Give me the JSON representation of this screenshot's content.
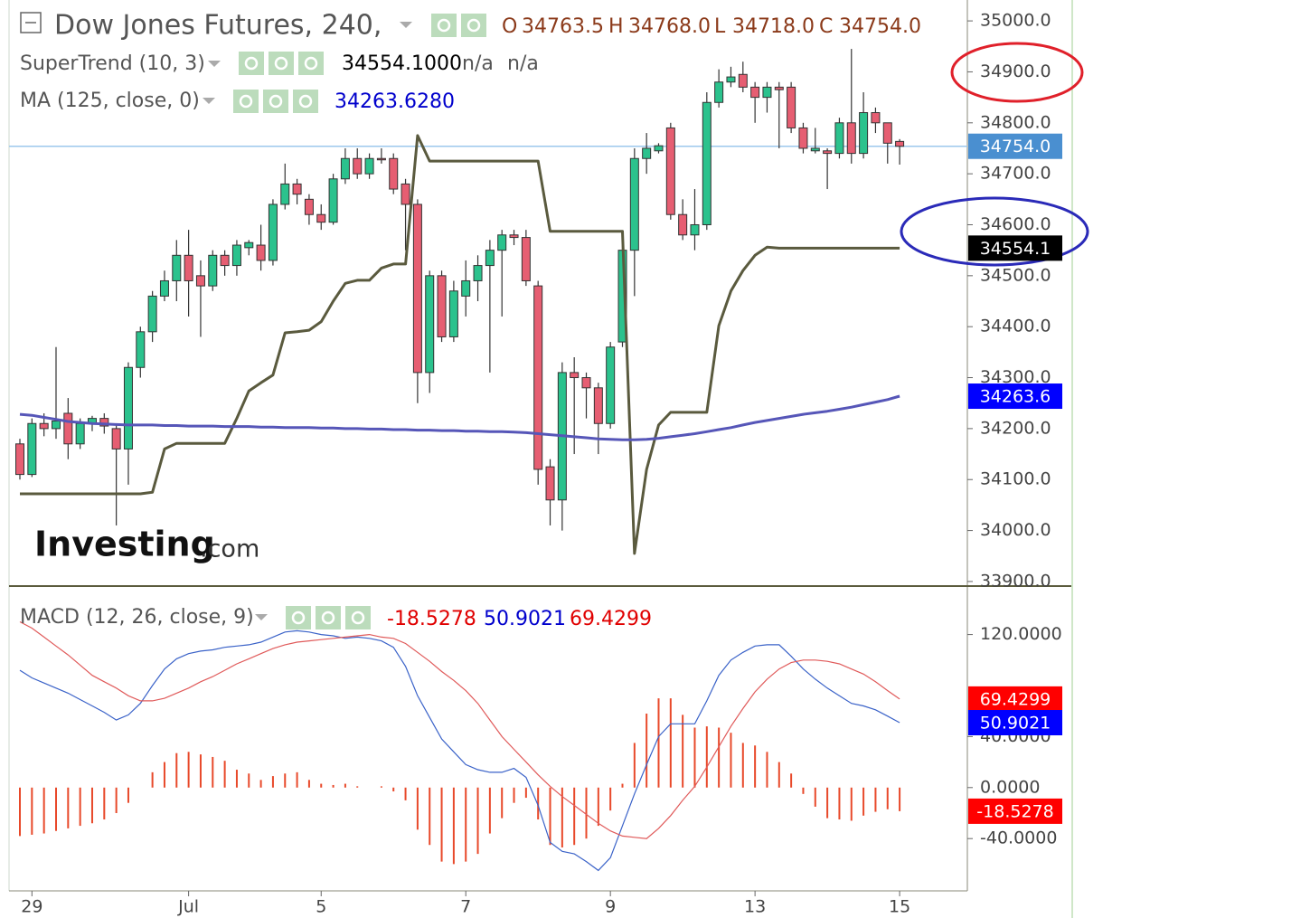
{
  "chart_data": [
    {
      "type": "candlestick",
      "title": "Dow Jones Futures, 240,",
      "ohlc_names": [
        "O",
        "H",
        "L",
        "C"
      ],
      "ohlc_value_labels": [
        "34763.5",
        "34768.0",
        "34718.0",
        "34754.0"
      ],
      "last_price_label": "34754.0",
      "up_color": "#2bc28d",
      "down_color": "#e65e72",
      "last_price_color": "#4a8fd0",
      "categories": [
        null,
        "29",
        null,
        null,
        null,
        null,
        null,
        null,
        null,
        null,
        null,
        null,
        null,
        null,
        "Jul",
        null,
        null,
        null,
        null,
        null,
        null,
        null,
        null,
        null,
        null,
        "5",
        null,
        null,
        null,
        null,
        null,
        null,
        null,
        null,
        null,
        null,
        null,
        "7",
        null,
        null,
        null,
        null,
        null,
        null,
        null,
        null,
        null,
        null,
        null,
        "9",
        null,
        null,
        null,
        null,
        null,
        null,
        null,
        null,
        null,
        null,
        null,
        "13",
        null,
        null,
        null,
        null,
        null,
        null,
        null,
        null,
        null,
        null,
        null,
        "15"
      ],
      "open": [
        34170,
        34110,
        34210,
        34200,
        34230,
        34170,
        34210,
        34220,
        34200,
        34160,
        34320,
        34390,
        34460,
        34490,
        34540,
        34500,
        34480,
        34540,
        34520,
        34555,
        34560,
        34530,
        34640,
        34680,
        34650,
        34620,
        34605,
        34690,
        34730,
        34700,
        34730,
        34730,
        34680,
        34640,
        34310,
        34500,
        34380,
        34460,
        34490,
        34520,
        34550,
        34580,
        34575,
        34480,
        34125,
        34060,
        34310,
        34300,
        34280,
        34210,
        34370,
        34550,
        34730,
        34745,
        34790,
        34620,
        34580,
        34600,
        34840,
        34880,
        34895,
        34870,
        34850,
        34870,
        34870,
        34790,
        34745,
        34745,
        34740,
        34800,
        34740,
        34820,
        34800,
        34763.5
      ],
      "high": [
        34180,
        34220,
        34230,
        34360,
        34260,
        34220,
        34225,
        34230,
        34210,
        34330,
        34400,
        34470,
        34510,
        34570,
        34590,
        34530,
        34550,
        34550,
        34570,
        34570,
        34600,
        34650,
        34720,
        34690,
        34660,
        34640,
        34700,
        34750,
        34750,
        34740,
        34750,
        34740,
        34690,
        34650,
        34510,
        34510,
        34490,
        34530,
        34540,
        34570,
        34590,
        34590,
        34590,
        34490,
        34140,
        34330,
        34340,
        34310,
        34290,
        34370,
        34560,
        34750,
        34780,
        34760,
        34800,
        34650,
        34670,
        34860,
        34905,
        34910,
        34920,
        34880,
        34880,
        34880,
        34880,
        34800,
        34790,
        34750,
        34810,
        34945,
        34860,
        34830,
        34800,
        34768
      ],
      "low": [
        34100,
        34105,
        34185,
        34180,
        34140,
        34160,
        34195,
        34190,
        34010,
        34090,
        34300,
        34370,
        34450,
        34450,
        34420,
        34380,
        34470,
        34500,
        34500,
        34540,
        34510,
        34520,
        34630,
        34640,
        34600,
        34590,
        34600,
        34680,
        34690,
        34690,
        34720,
        34660,
        34550,
        34250,
        34270,
        34370,
        34370,
        34420,
        34450,
        34310,
        34420,
        34560,
        34480,
        34090,
        34010,
        34000,
        34150,
        34220,
        34150,
        34200,
        34360,
        34460,
        34700,
        34740,
        34610,
        34570,
        34550,
        34590,
        34830,
        34870,
        34860,
        34800,
        34820,
        34750,
        34780,
        34740,
        34740,
        34670,
        34730,
        34720,
        34730,
        34780,
        34720,
        34718
      ],
      "close": [
        34110,
        34210,
        34200,
        34215,
        34170,
        34210,
        34220,
        34205,
        34160,
        34320,
        34390,
        34460,
        34490,
        34540,
        34490,
        34480,
        34540,
        34520,
        34560,
        34565,
        34530,
        34640,
        34680,
        34660,
        34620,
        34605,
        34690,
        34730,
        34700,
        34730,
        34728,
        34670,
        34640,
        34310,
        34500,
        34380,
        34470,
        34490,
        34520,
        34550,
        34580,
        34575,
        34490,
        34120,
        34060,
        34310,
        34300,
        34280,
        34210,
        34360,
        34550,
        34730,
        34750,
        34755,
        34620,
        34580,
        34600,
        34840,
        34880,
        34890,
        34870,
        34850,
        34870,
        34865,
        34790,
        34750,
        34750,
        34740,
        34800,
        34740,
        34820,
        34800,
        34760,
        34754
      ],
      "series": [
        {
          "name": "SuperTrend (10, 3)",
          "color": "#5a5a3e",
          "legend_values": [
            "34554.1000",
            "n/a",
            "n/a"
          ],
          "legend_color": "#000000",
          "tag_color": "#000000",
          "values": [
            34072,
            34072,
            34072,
            34072,
            34072,
            34072,
            34072,
            34072,
            34072,
            34072,
            34072,
            34075,
            34160,
            34171,
            34171,
            34171,
            34171,
            34171,
            34220,
            34274,
            34290,
            34305,
            34388,
            34390,
            34393,
            34410,
            34450,
            34485,
            34491,
            34491,
            34515,
            34523,
            34523,
            34775,
            34725,
            34725,
            34725,
            34725,
            34725,
            34725,
            34725,
            34725,
            34725,
            34725,
            34587,
            34587,
            34587,
            34587,
            34587,
            34587,
            34587,
            33955,
            34120,
            34207,
            34232,
            34232,
            34232,
            34232,
            34402,
            34470,
            34510,
            34540,
            34556,
            34554.1,
            34554.1,
            34554.1,
            34554.1,
            34554.1,
            34554.1,
            34554.1,
            34554.1,
            34554.1,
            34554.1,
            34554.1
          ],
          "last_value_label": "34554.1"
        },
        {
          "name": "MA (125, close, 0)",
          "color": "#5656b8",
          "legend_values": [
            "34263.6280"
          ],
          "legend_color": "#0000cc",
          "tag_color": "#0000ff",
          "values": [
            34228,
            34226,
            34222,
            34218,
            34214,
            34212,
            34210,
            34209,
            34208,
            34207,
            34207,
            34207,
            34206,
            34206,
            34205,
            34205,
            34205,
            34204,
            34204,
            34204,
            34203,
            34203,
            34202,
            34202,
            34202,
            34201,
            34201,
            34200,
            34200,
            34199,
            34199,
            34198,
            34198,
            34197,
            34197,
            34196,
            34196,
            34195,
            34195,
            34194,
            34194,
            34193,
            34192,
            34190,
            34188,
            34186,
            34184,
            34182,
            34180,
            34179,
            34178,
            34178,
            34179,
            34181,
            34184,
            34187,
            34190,
            34194,
            34198,
            34202,
            34207,
            34212,
            34216,
            34220,
            34224,
            34228,
            34231,
            34234,
            34238,
            34242,
            34247,
            34252,
            34257,
            34263.628
          ],
          "last_value_label": "34263.6"
        }
      ],
      "ylim": [
        33891,
        35041
      ],
      "yticks": [
        {
          "value": 35000,
          "label": "35000.0"
        },
        {
          "value": 34900,
          "label": "34900.0"
        },
        {
          "value": 34800,
          "label": "34800.0"
        },
        {
          "value": 34700,
          "label": "34700.0"
        },
        {
          "value": 34600,
          "label": "34600.0"
        },
        {
          "value": 34500,
          "label": "34500.0"
        },
        {
          "value": 34400,
          "label": "34400.0"
        },
        {
          "value": 34300,
          "label": "34300.0"
        },
        {
          "value": 34200,
          "label": "34200.0"
        },
        {
          "value": 34100,
          "label": "34100.0"
        },
        {
          "value": 34000,
          "label": "34000.0"
        },
        {
          "value": 33900,
          "label": "33900.0"
        }
      ],
      "watermark": [
        "Investing",
        ".com"
      ]
    },
    {
      "type": "macd",
      "title": "MACD (12, 26, close, 9)",
      "series": [
        {
          "kind": "bar",
          "color": "#e8492a",
          "values": [
            -38,
            -37,
            -36,
            -34,
            -32,
            -30,
            -28,
            -25,
            -20,
            -12,
            0,
            12,
            20,
            27,
            28,
            26,
            24,
            21,
            14,
            11,
            6,
            9,
            11,
            12,
            6,
            3,
            2,
            3,
            1,
            0,
            1,
            -3,
            -10,
            -33,
            -45,
            -58,
            -60,
            -58,
            -52,
            -36,
            -24,
            -12,
            -8,
            -25,
            -45,
            -47,
            -45,
            -40,
            -30,
            -18,
            3,
            35,
            58,
            70,
            70,
            57,
            47,
            48,
            47,
            43,
            35,
            33,
            28,
            20,
            11,
            -5,
            -15,
            -24,
            -25,
            -26,
            -22,
            -19,
            -17,
            -18.5278
          ],
          "tag_color": "#ff0000"
        },
        {
          "kind": "line",
          "color": "#3a62c8",
          "values": [
            92,
            86,
            82,
            78,
            74,
            69,
            64,
            59,
            53,
            57,
            66,
            80,
            93,
            101,
            105,
            107,
            108,
            110,
            111,
            112,
            114,
            118,
            122,
            123,
            122,
            120,
            119,
            117,
            118,
            117,
            115,
            110,
            95,
            72,
            55,
            38,
            28,
            18,
            14,
            12,
            12,
            15,
            8,
            -14,
            -43,
            -50,
            -52,
            -58,
            -65,
            -55,
            -30,
            -5,
            18,
            40,
            50,
            50,
            50,
            68,
            88,
            100,
            106,
            111,
            112,
            112,
            103,
            93,
            85,
            78,
            72,
            66,
            64,
            61,
            56,
            50.9021
          ],
          "tag_color": "#0000ff"
        },
        {
          "kind": "line",
          "color": "#e05a5a",
          "values": [
            130,
            125,
            118,
            111,
            104,
            96,
            88,
            83,
            78,
            72,
            68,
            68,
            70,
            74,
            78,
            83,
            87,
            92,
            97,
            101,
            105,
            109,
            112,
            114,
            115,
            116,
            117,
            118,
            119,
            120,
            118,
            117,
            113,
            106,
            99,
            91,
            84,
            76,
            66,
            53,
            40,
            30,
            20,
            10,
            1,
            -7,
            -14,
            -21,
            -28,
            -34,
            -38,
            -39,
            -40,
            -32,
            -22,
            -10,
            1,
            16,
            32,
            48,
            62,
            75,
            85,
            93,
            98,
            100,
            100,
            99,
            97,
            93,
            89,
            83,
            76,
            69.4299
          ],
          "tag_color": "#ff0000"
        }
      ],
      "ylim": [
        -81,
        158
      ],
      "yticks": [
        {
          "value": 120,
          "label": "120.0000"
        },
        {
          "value": 40,
          "label": "40.0000"
        },
        {
          "value": 0,
          "label": "0.0000"
        },
        {
          "value": -40,
          "label": "-40.0000"
        }
      ]
    }
  ]
}
